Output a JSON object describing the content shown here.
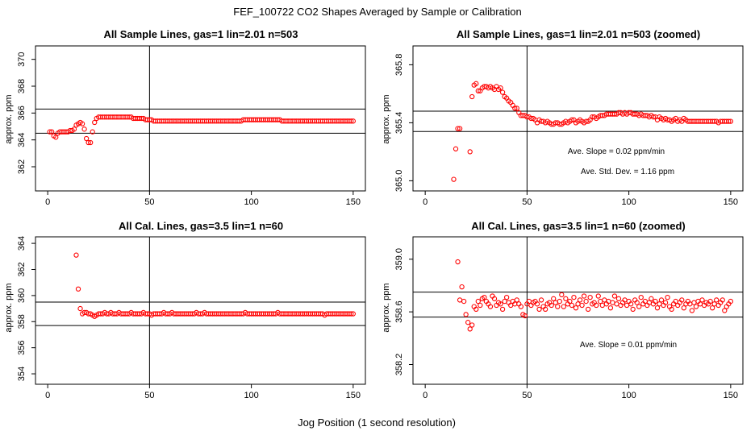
{
  "title": "FEF_100722  CO2 Shapes Averaged by Sample or Calibration",
  "xlabel": "Jog Position (1 second resolution)",
  "colors": {
    "points": "#ff0000",
    "axes": "#000000"
  },
  "chart_data": [
    {
      "type": "scatter",
      "title": "All Sample Lines, gas=1 lin=2.01 n=503",
      "ylabel": "approx. ppm",
      "xlim": [
        -6,
        156
      ],
      "ylim": [
        360.2,
        371.0
      ],
      "xticks": [
        "0",
        "50",
        "100",
        "150"
      ],
      "yticks": [
        "362",
        "364",
        "366",
        "368",
        "370"
      ],
      "vline": 50,
      "hlines": [
        364.5,
        366.3
      ],
      "x": [
        1,
        2,
        3,
        4,
        5,
        6,
        7,
        8,
        9,
        10,
        11,
        12,
        13,
        14,
        15,
        16,
        17,
        18,
        19,
        20,
        21,
        22,
        23,
        24,
        25,
        26,
        27,
        28,
        29,
        30,
        31,
        32,
        33,
        34,
        35,
        36,
        37,
        38,
        39,
        40,
        41,
        42,
        43,
        44,
        45,
        46,
        47,
        48,
        49,
        50,
        51,
        52,
        53,
        54,
        55,
        56,
        57,
        58,
        59,
        60,
        61,
        62,
        63,
        64,
        65,
        66,
        67,
        68,
        69,
        70,
        71,
        72,
        73,
        74,
        75,
        76,
        77,
        78,
        79,
        80,
        81,
        82,
        83,
        84,
        85,
        86,
        87,
        88,
        89,
        90,
        91,
        92,
        93,
        94,
        95,
        96,
        97,
        98,
        99,
        100,
        101,
        102,
        103,
        104,
        105,
        106,
        107,
        108,
        109,
        110,
        111,
        112,
        113,
        114,
        115,
        116,
        117,
        118,
        119,
        120,
        121,
        122,
        123,
        124,
        125,
        126,
        127,
        128,
        129,
        130,
        131,
        132,
        133,
        134,
        135,
        136,
        137,
        138,
        139,
        140,
        141,
        142,
        143,
        144,
        145,
        146,
        147,
        148,
        149,
        150
      ],
      "y": [
        364.6,
        364.6,
        364.3,
        364.2,
        364.5,
        364.6,
        364.6,
        364.6,
        364.6,
        364.6,
        364.7,
        364.7,
        364.8,
        365.1,
        365.2,
        365.3,
        365.2,
        364.8,
        364.1,
        363.8,
        363.8,
        364.6,
        365.3,
        365.6,
        365.7,
        365.7,
        365.7,
        365.7,
        365.7,
        365.7,
        365.7,
        365.7,
        365.7,
        365.7,
        365.7,
        365.7,
        365.7,
        365.7,
        365.7,
        365.7,
        365.7,
        365.6,
        365.6,
        365.6,
        365.6,
        365.6,
        365.6,
        365.5,
        365.5,
        365.5,
        365.5,
        365.4,
        365.4,
        365.4,
        365.4,
        365.4,
        365.4,
        365.4,
        365.4,
        365.4,
        365.4,
        365.4,
        365.4,
        365.4,
        365.4,
        365.4,
        365.4,
        365.4,
        365.4,
        365.4,
        365.4,
        365.4,
        365.4,
        365.4,
        365.4,
        365.4,
        365.4,
        365.4,
        365.4,
        365.4,
        365.4,
        365.4,
        365.4,
        365.4,
        365.4,
        365.4,
        365.4,
        365.4,
        365.4,
        365.4,
        365.4,
        365.4,
        365.4,
        365.4,
        365.4,
        365.5,
        365.5,
        365.5,
        365.5,
        365.5,
        365.5,
        365.5,
        365.5,
        365.5,
        365.5,
        365.5,
        365.5,
        365.5,
        365.5,
        365.5,
        365.5,
        365.5,
        365.5,
        365.5,
        365.4,
        365.4,
        365.4,
        365.4,
        365.4,
        365.4,
        365.4,
        365.4,
        365.4,
        365.4,
        365.4,
        365.4,
        365.4,
        365.4,
        365.4,
        365.4,
        365.4,
        365.4,
        365.4,
        365.4,
        365.4,
        365.4,
        365.4,
        365.4,
        365.4,
        365.4,
        365.4,
        365.4,
        365.4,
        365.4,
        365.4,
        365.4,
        365.4,
        365.4,
        365.4,
        365.4
      ],
      "annotations": []
    },
    {
      "type": "scatter",
      "title": "All Sample Lines, gas=1 lin=2.01 n=503 (zoomed)",
      "ylabel": "approx. ppm",
      "xlim": [
        -6,
        156
      ],
      "ylim": [
        364.93,
        365.93
      ],
      "xticks": [
        "0",
        "50",
        "100",
        "150"
      ],
      "yticks": [
        "365.0",
        "365.4",
        "365.8"
      ],
      "vline": 50,
      "hlines": [
        365.48,
        365.34
      ],
      "x": [
        14,
        15,
        16,
        17,
        22,
        23,
        24,
        25,
        26,
        27,
        28,
        29,
        30,
        31,
        32,
        33,
        34,
        35,
        36,
        37,
        38,
        39,
        40,
        41,
        42,
        43,
        44,
        45,
        46,
        47,
        48,
        49,
        50,
        51,
        52,
        53,
        54,
        55,
        56,
        57,
        58,
        59,
        60,
        61,
        62,
        63,
        64,
        65,
        66,
        67,
        68,
        69,
        70,
        71,
        72,
        73,
        74,
        75,
        76,
        77,
        78,
        79,
        80,
        81,
        82,
        83,
        84,
        85,
        86,
        87,
        88,
        89,
        90,
        91,
        92,
        93,
        94,
        95,
        96,
        97,
        98,
        99,
        100,
        101,
        102,
        103,
        104,
        105,
        106,
        107,
        108,
        109,
        110,
        111,
        112,
        113,
        114,
        115,
        116,
        117,
        118,
        119,
        120,
        121,
        122,
        123,
        124,
        125,
        126,
        127,
        128,
        129,
        130,
        131,
        132,
        133,
        134,
        135,
        136,
        137,
        138,
        139,
        140,
        141,
        142,
        143,
        144,
        145,
        146,
        147,
        148,
        149,
        150
      ],
      "y": [
        365.01,
        365.22,
        365.36,
        365.36,
        365.2,
        365.58,
        365.66,
        365.67,
        365.62,
        365.62,
        365.64,
        365.65,
        365.65,
        365.64,
        365.65,
        365.64,
        365.63,
        365.65,
        365.63,
        365.64,
        365.61,
        365.58,
        365.57,
        365.55,
        365.54,
        365.52,
        365.5,
        365.5,
        365.47,
        365.45,
        365.45,
        365.45,
        365.44,
        365.44,
        365.43,
        365.43,
        365.42,
        365.4,
        365.42,
        365.41,
        365.41,
        365.4,
        365.41,
        365.4,
        365.39,
        365.39,
        365.4,
        365.4,
        365.39,
        365.39,
        365.4,
        365.41,
        365.4,
        365.41,
        365.42,
        365.42,
        365.4,
        365.41,
        365.42,
        365.41,
        365.4,
        365.41,
        365.41,
        365.42,
        365.44,
        365.44,
        365.43,
        365.44,
        365.45,
        365.45,
        365.45,
        365.46,
        365.46,
        365.46,
        365.46,
        365.46,
        365.46,
        365.47,
        365.47,
        365.46,
        365.47,
        365.46,
        365.47,
        365.47,
        365.46,
        365.46,
        365.46,
        365.45,
        365.46,
        365.45,
        365.45,
        365.45,
        365.44,
        365.45,
        365.44,
        365.44,
        365.42,
        365.44,
        365.43,
        365.42,
        365.43,
        365.42,
        365.42,
        365.41,
        365.42,
        365.43,
        365.41,
        365.42,
        365.41,
        365.43,
        365.42,
        365.41,
        365.41,
        365.41,
        365.41,
        365.41,
        365.41,
        365.41,
        365.41,
        365.41,
        365.41,
        365.41,
        365.41,
        365.41,
        365.41,
        365.41,
        365.4,
        365.41,
        365.41,
        365.41,
        365.41,
        365.41,
        365.41
      ],
      "annotations": [
        "Ave. Slope =  0.02  ppm/min",
        "Ave. Std. Dev. =  1.16  ppm"
      ]
    },
    {
      "type": "scatter",
      "title": "All Cal. Lines, gas=3.5 lin=1 n=60",
      "ylabel": "approx. ppm",
      "xlim": [
        -6,
        156
      ],
      "ylim": [
        353.2,
        364.5
      ],
      "xticks": [
        "0",
        "50",
        "100",
        "150"
      ],
      "yticks": [
        "354",
        "356",
        "358",
        "360",
        "362",
        "364"
      ],
      "vline": 50,
      "hlines": [
        359.5,
        357.7
      ],
      "x": [
        14,
        15,
        16,
        17,
        18,
        19,
        20,
        21,
        22,
        23,
        24,
        25,
        26,
        27,
        28,
        29,
        30,
        31,
        32,
        33,
        34,
        35,
        36,
        37,
        38,
        39,
        40,
        41,
        42,
        43,
        44,
        45,
        46,
        47,
        48,
        49,
        50,
        51,
        52,
        53,
        54,
        55,
        56,
        57,
        58,
        59,
        60,
        61,
        62,
        63,
        64,
        65,
        66,
        67,
        68,
        69,
        70,
        71,
        72,
        73,
        74,
        75,
        76,
        77,
        78,
        79,
        80,
        81,
        82,
        83,
        84,
        85,
        86,
        87,
        88,
        89,
        90,
        91,
        92,
        93,
        94,
        95,
        96,
        97,
        98,
        99,
        100,
        101,
        102,
        103,
        104,
        105,
        106,
        107,
        108,
        109,
        110,
        111,
        112,
        113,
        114,
        115,
        116,
        117,
        118,
        119,
        120,
        121,
        122,
        123,
        124,
        125,
        126,
        127,
        128,
        129,
        130,
        131,
        132,
        133,
        134,
        135,
        136,
        137,
        138,
        139,
        140,
        141,
        142,
        143,
        144,
        145,
        146,
        147,
        148,
        149,
        150
      ],
      "y": [
        363.1,
        360.5,
        359.0,
        358.6,
        358.7,
        358.7,
        358.6,
        358.6,
        358.5,
        358.4,
        358.5,
        358.6,
        358.6,
        358.6,
        358.7,
        358.6,
        358.6,
        358.7,
        358.6,
        358.6,
        358.6,
        358.7,
        358.6,
        358.6,
        358.6,
        358.6,
        358.6,
        358.7,
        358.6,
        358.6,
        358.6,
        358.6,
        358.6,
        358.7,
        358.6,
        358.6,
        358.6,
        358.5,
        358.6,
        358.6,
        358.6,
        358.6,
        358.6,
        358.7,
        358.6,
        358.6,
        358.6,
        358.7,
        358.6,
        358.6,
        358.6,
        358.6,
        358.6,
        358.6,
        358.6,
        358.6,
        358.6,
        358.6,
        358.6,
        358.7,
        358.6,
        358.6,
        358.6,
        358.7,
        358.6,
        358.6,
        358.6,
        358.6,
        358.6,
        358.6,
        358.6,
        358.6,
        358.6,
        358.6,
        358.6,
        358.6,
        358.6,
        358.6,
        358.6,
        358.6,
        358.6,
        358.6,
        358.6,
        358.7,
        358.6,
        358.6,
        358.6,
        358.6,
        358.6,
        358.6,
        358.6,
        358.6,
        358.6,
        358.6,
        358.6,
        358.6,
        358.6,
        358.6,
        358.6,
        358.7,
        358.6,
        358.6,
        358.6,
        358.6,
        358.6,
        358.6,
        358.6,
        358.6,
        358.6,
        358.6,
        358.6,
        358.6,
        358.6,
        358.6,
        358.6,
        358.6,
        358.6,
        358.6,
        358.6,
        358.6,
        358.6,
        358.6,
        358.5,
        358.6,
        358.6,
        358.6,
        358.6,
        358.6,
        358.6,
        358.6,
        358.6,
        358.6,
        358.6,
        358.6,
        358.6,
        358.6,
        358.6
      ],
      "annotations": []
    },
    {
      "type": "scatter",
      "title": "All Cal. Lines, gas=3.5 lin=1 n=60 (zoomed)",
      "ylabel": "approx. ppm",
      "xlim": [
        -6,
        156
      ],
      "ylim": [
        358.05,
        359.17
      ],
      "xticks": [
        "0",
        "50",
        "100",
        "150"
      ],
      "yticks": [
        "358.2",
        "358.6",
        "359.0"
      ],
      "vline": 50,
      "hlines": [
        358.75,
        358.56
      ],
      "x": [
        16,
        17,
        18,
        19,
        20,
        21,
        22,
        23,
        24,
        25,
        26,
        27,
        28,
        29,
        30,
        31,
        32,
        33,
        34,
        35,
        36,
        37,
        38,
        39,
        40,
        41,
        42,
        43,
        44,
        45,
        46,
        47,
        48,
        49,
        50,
        51,
        52,
        53,
        54,
        55,
        56,
        57,
        58,
        59,
        60,
        61,
        62,
        63,
        64,
        65,
        66,
        67,
        68,
        69,
        70,
        71,
        72,
        73,
        74,
        75,
        76,
        77,
        78,
        79,
        80,
        81,
        82,
        83,
        84,
        85,
        86,
        87,
        88,
        89,
        90,
        91,
        92,
        93,
        94,
        95,
        96,
        97,
        98,
        99,
        100,
        101,
        102,
        103,
        104,
        105,
        106,
        107,
        108,
        109,
        110,
        111,
        112,
        113,
        114,
        115,
        116,
        117,
        118,
        119,
        120,
        121,
        122,
        123,
        124,
        125,
        126,
        127,
        128,
        129,
        130,
        131,
        132,
        133,
        134,
        135,
        136,
        137,
        138,
        139,
        140,
        141,
        142,
        143,
        144,
        145,
        146,
        147,
        148,
        149,
        150
      ],
      "y": [
        358.98,
        358.69,
        358.79,
        358.68,
        358.58,
        358.52,
        358.47,
        358.5,
        358.64,
        358.62,
        358.68,
        358.65,
        358.7,
        358.71,
        358.68,
        358.66,
        358.64,
        358.72,
        358.7,
        358.65,
        358.67,
        358.66,
        358.62,
        358.68,
        358.71,
        358.67,
        358.65,
        358.68,
        358.66,
        358.69,
        358.66,
        358.64,
        358.58,
        358.57,
        358.66,
        358.68,
        358.65,
        358.67,
        358.68,
        358.66,
        358.62,
        358.69,
        358.64,
        358.62,
        358.66,
        358.67,
        358.65,
        358.7,
        358.67,
        358.64,
        358.68,
        358.73,
        358.64,
        358.7,
        358.66,
        358.68,
        358.65,
        358.71,
        358.63,
        358.66,
        358.69,
        358.65,
        358.72,
        358.68,
        358.62,
        358.71,
        358.66,
        358.67,
        358.65,
        358.72,
        358.68,
        358.65,
        358.69,
        358.66,
        358.68,
        358.63,
        358.67,
        358.72,
        358.66,
        358.7,
        358.65,
        358.67,
        358.69,
        358.65,
        358.68,
        358.66,
        358.62,
        358.69,
        358.67,
        358.64,
        358.71,
        358.66,
        358.68,
        358.65,
        358.67,
        358.7,
        358.66,
        358.68,
        358.63,
        358.66,
        358.69,
        358.65,
        358.67,
        358.71,
        358.64,
        358.62,
        358.66,
        358.68,
        358.65,
        358.67,
        358.69,
        358.63,
        358.66,
        358.68,
        358.66,
        358.61,
        358.67,
        358.64,
        358.68,
        358.66,
        358.69,
        358.65,
        358.67,
        358.66,
        358.68,
        358.63,
        358.66,
        358.69,
        358.65,
        358.67,
        358.69,
        358.61,
        358.64,
        358.66,
        358.68
      ],
      "annotations": [
        "Ave. Slope =  0.01  ppm/min"
      ]
    }
  ]
}
